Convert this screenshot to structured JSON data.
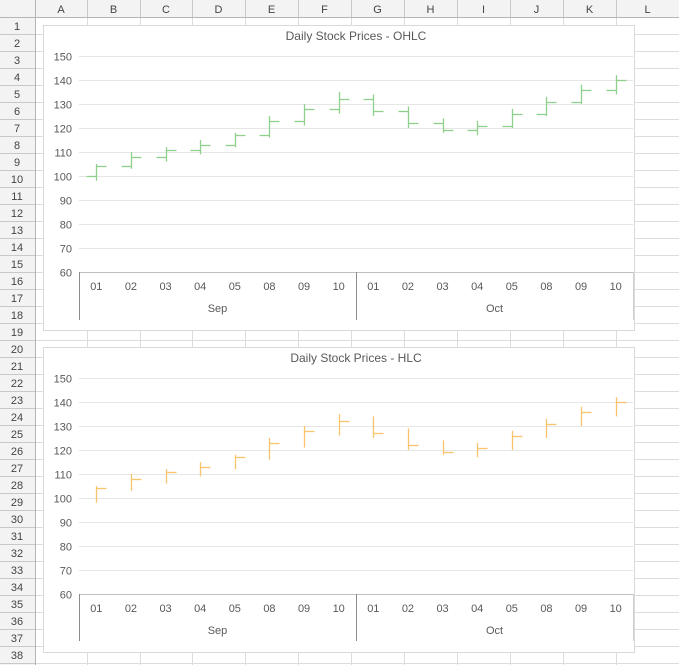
{
  "sheet": {
    "columns": [
      "A",
      "B",
      "C",
      "D",
      "E",
      "F",
      "G",
      "H",
      "I",
      "J",
      "K",
      "L"
    ],
    "rows": [
      "1",
      "2",
      "3",
      "4",
      "5",
      "6",
      "7",
      "8",
      "9",
      "10",
      "11",
      "12",
      "13",
      "14",
      "15",
      "16",
      "17",
      "18",
      "19",
      "20",
      "21",
      "22",
      "23",
      "24",
      "25",
      "26",
      "27",
      "28",
      "29",
      "30",
      "31",
      "32",
      "33",
      "34",
      "35",
      "36",
      "37",
      "38"
    ]
  },
  "chart_data": [
    {
      "type": "ohlc",
      "title": "Daily Stock Prices - OHLC",
      "color": "#8fd18a",
      "ylim": [
        60,
        150
      ],
      "yticks": [
        60,
        70,
        80,
        90,
        100,
        110,
        120,
        130,
        140,
        150
      ],
      "categories": [
        "01",
        "02",
        "03",
        "04",
        "05",
        "08",
        "09",
        "10",
        "01",
        "02",
        "03",
        "04",
        "05",
        "08",
        "09",
        "10"
      ],
      "groups": [
        {
          "label": "Sep",
          "count": 8
        },
        {
          "label": "Oct",
          "count": 8
        }
      ],
      "points": [
        {
          "o": 100,
          "h": 105,
          "l": 98,
          "c": 104
        },
        {
          "o": 104,
          "h": 110,
          "l": 103,
          "c": 108
        },
        {
          "o": 108,
          "h": 112,
          "l": 106,
          "c": 111
        },
        {
          "o": 111,
          "h": 115,
          "l": 109,
          "c": 113
        },
        {
          "o": 113,
          "h": 118,
          "l": 112,
          "c": 117
        },
        {
          "o": 117,
          "h": 125,
          "l": 116,
          "c": 123
        },
        {
          "o": 123,
          "h": 130,
          "l": 121,
          "c": 128
        },
        {
          "o": 128,
          "h": 135,
          "l": 126,
          "c": 132
        },
        {
          "o": 132,
          "h": 134,
          "l": 125,
          "c": 127
        },
        {
          "o": 127,
          "h": 129,
          "l": 120,
          "c": 122
        },
        {
          "o": 122,
          "h": 124,
          "l": 118,
          "c": 119
        },
        {
          "o": 119,
          "h": 123,
          "l": 117,
          "c": 121
        },
        {
          "o": 121,
          "h": 128,
          "l": 120,
          "c": 126
        },
        {
          "o": 126,
          "h": 133,
          "l": 125,
          "c": 131
        },
        {
          "o": 131,
          "h": 138,
          "l": 130,
          "c": 136
        },
        {
          "o": 136,
          "h": 142,
          "l": 134,
          "c": 140
        }
      ]
    },
    {
      "type": "hlc",
      "title": "Daily Stock Prices - HLC",
      "color": "#f9c46b",
      "ylim": [
        60,
        150
      ],
      "yticks": [
        60,
        70,
        80,
        90,
        100,
        110,
        120,
        130,
        140,
        150
      ],
      "categories": [
        "01",
        "02",
        "03",
        "04",
        "05",
        "08",
        "09",
        "10",
        "01",
        "02",
        "03",
        "04",
        "05",
        "08",
        "09",
        "10"
      ],
      "groups": [
        {
          "label": "Sep",
          "count": 8
        },
        {
          "label": "Oct",
          "count": 8
        }
      ],
      "points": [
        {
          "h": 105,
          "l": 98,
          "c": 104
        },
        {
          "h": 110,
          "l": 103,
          "c": 108
        },
        {
          "h": 112,
          "l": 106,
          "c": 111
        },
        {
          "h": 115,
          "l": 109,
          "c": 113
        },
        {
          "h": 118,
          "l": 112,
          "c": 117
        },
        {
          "h": 125,
          "l": 116,
          "c": 123
        },
        {
          "h": 130,
          "l": 121,
          "c": 128
        },
        {
          "h": 135,
          "l": 126,
          "c": 132
        },
        {
          "h": 134,
          "l": 125,
          "c": 127
        },
        {
          "h": 129,
          "l": 120,
          "c": 122
        },
        {
          "h": 124,
          "l": 118,
          "c": 119
        },
        {
          "h": 123,
          "l": 117,
          "c": 121
        },
        {
          "h": 128,
          "l": 120,
          "c": 126
        },
        {
          "h": 133,
          "l": 125,
          "c": 131
        },
        {
          "h": 138,
          "l": 130,
          "c": 136
        },
        {
          "h": 142,
          "l": 134,
          "c": 140
        }
      ]
    }
  ]
}
